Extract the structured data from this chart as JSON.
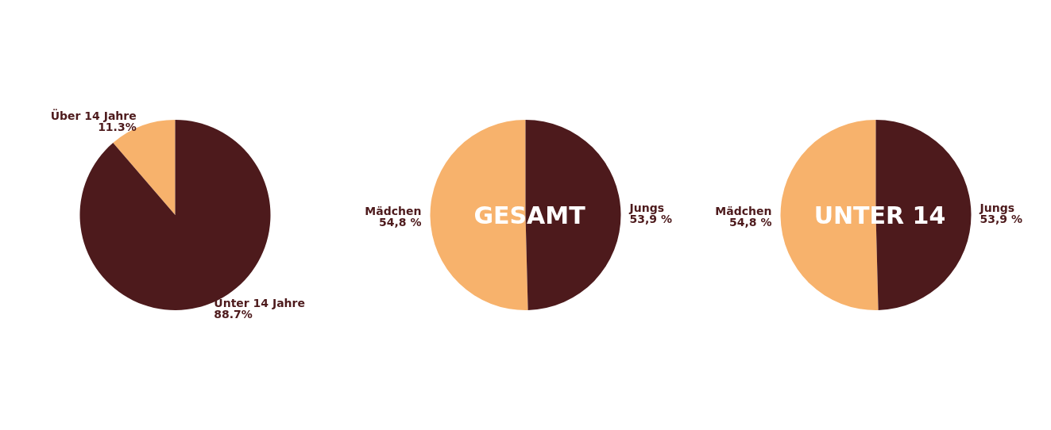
{
  "chart_data": [
    {
      "type": "pie",
      "categories": [
        "Über 14 Jahre",
        "Unter 14 Jahre"
      ],
      "values": [
        11.3,
        88.7
      ],
      "colors": [
        "#f7b26c",
        "#4d1a1c"
      ],
      "value_labels": [
        "11.3%",
        "88.7%"
      ]
    },
    {
      "type": "pie",
      "title": "GESAMT",
      "categories": [
        "Mädchen",
        "Jungs"
      ],
      "values": [
        54.8,
        53.9
      ],
      "colors": [
        "#f7b26c",
        "#4d1a1c"
      ],
      "value_labels": [
        "54,8 %",
        "53,9 %"
      ]
    },
    {
      "type": "pie",
      "title": "UNTER 14",
      "categories": [
        "Mädchen",
        "Jungs"
      ],
      "values": [
        54.8,
        53.9
      ],
      "colors": [
        "#f7b26c",
        "#4d1a1c"
      ],
      "value_labels": [
        "54,8 %",
        "53,9 %"
      ]
    }
  ]
}
